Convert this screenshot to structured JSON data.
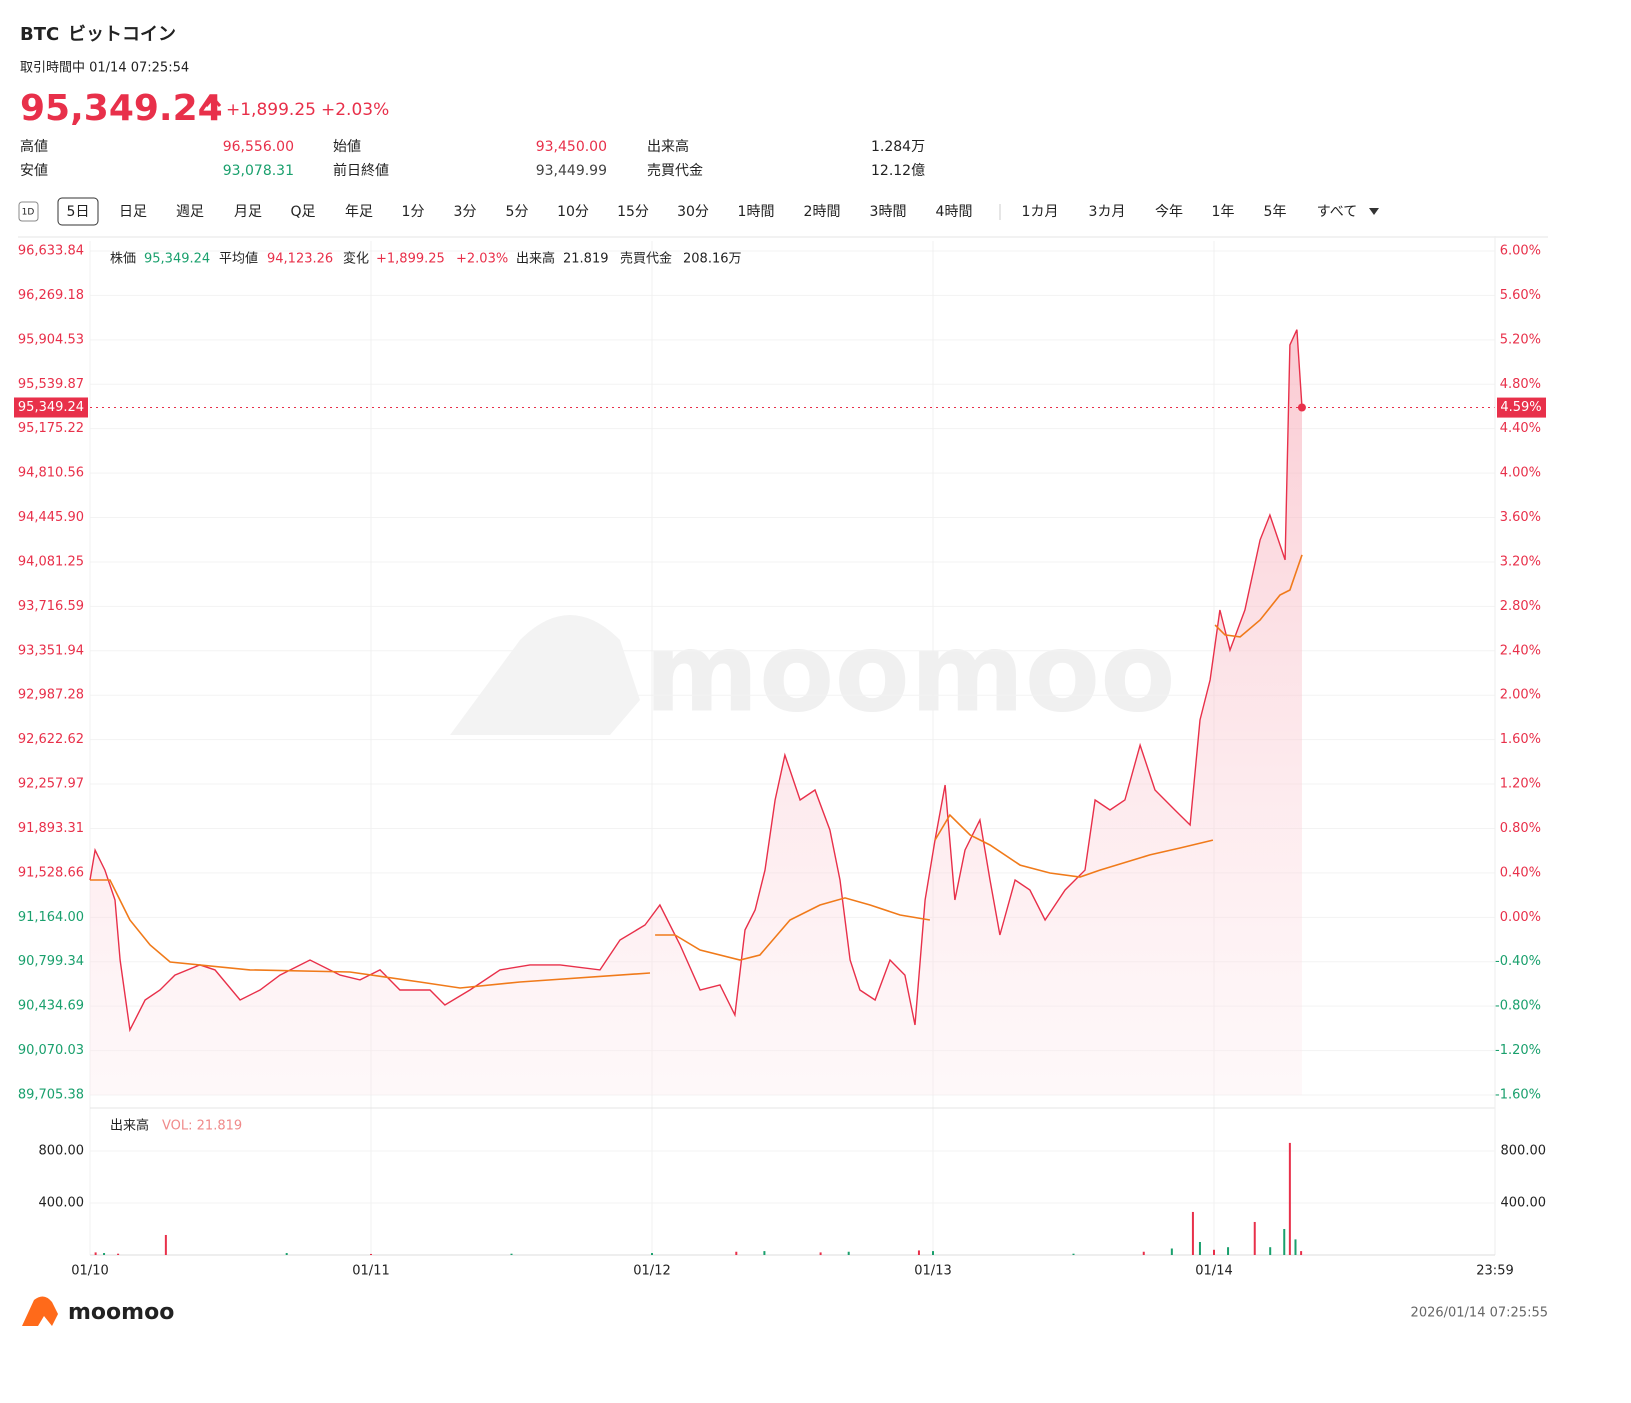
{
  "header": {
    "symbol": "BTC",
    "name": "ビットコイン",
    "status": "取引時間中 01/14 07:25:54",
    "price": "95,349.24",
    "change": "+1,899.25",
    "change_pct": "+2.03%",
    "stats": [
      [
        {
          "label": "高値",
          "value": "96,556.00"
        },
        {
          "label": "始値",
          "value": "93,450.00"
        },
        {
          "label": "出来高",
          "value": "1.284万"
        }
      ],
      [
        {
          "label": "安値",
          "value": "93,078.31"
        },
        {
          "label": "前日終値",
          "value": "93,449.99"
        },
        {
          "label": "売買代金",
          "value": "12.12億"
        }
      ]
    ],
    "tabs": [
      "1D",
      "5日",
      "日足",
      "週足",
      "月足",
      "Q足",
      "年足",
      "1分",
      "3分",
      "5分",
      "10分",
      "15分",
      "30分",
      "1時間",
      "2時間",
      "3時間",
      "4時間",
      "1カ月",
      "3カ月",
      "今年",
      "1年",
      "5年",
      "すべて"
    ],
    "selected_tab": "5日"
  },
  "info": [
    {
      "label": "株価",
      "value": "95,349.24"
    },
    {
      "label": "平均値",
      "value": "94,123.26"
    },
    {
      "label": "変化",
      "value": "+1,899.25"
    },
    {
      "label": "",
      "value": "+2.03%"
    },
    {
      "label": "出来高",
      "value": "21.819"
    },
    {
      "label": "売買代金",
      "value": "208.16万"
    }
  ],
  "watermark": "moomoo",
  "footer": {
    "brand": "moomoo",
    "timestamp": "2026/01/14 07:25:55"
  },
  "chart_data": [
    {
      "type": "line",
      "grid": true,
      "xlim": [
        0,
        5
      ],
      "xticks": [
        {
          "value": 0,
          "label": "01/10"
        },
        {
          "value": 1,
          "label": "01/11"
        },
        {
          "value": 2,
          "label": "01/12"
        },
        {
          "value": 3,
          "label": "01/13"
        },
        {
          "value": 4,
          "label": "01/14"
        },
        {
          "value": 5,
          "label": "23:59"
        }
      ],
      "ylim": [
        89705.38,
        96633.84
      ],
      "yticks": [
        {
          "value": 89705.38,
          "label": "89,705.38"
        },
        {
          "value": 90070.03,
          "label": "90,070.03"
        },
        {
          "value": 90434.69,
          "label": "90,434.69"
        },
        {
          "value": 90799.34,
          "label": "90,799.34"
        },
        {
          "value": 91164.0,
          "label": "91,164.00"
        },
        {
          "value": 91528.66,
          "label": "91,528.66"
        },
        {
          "value": 91893.31,
          "label": "91,893.31"
        },
        {
          "value": 92257.97,
          "label": "92,257.97"
        },
        {
          "value": 92622.62,
          "label": "92,622.62"
        },
        {
          "value": 92987.28,
          "label": "92,987.28"
        },
        {
          "value": 93351.94,
          "label": "93,351.94"
        },
        {
          "value": 93716.59,
          "label": "93,716.59"
        },
        {
          "value": 94081.25,
          "label": "94,081.25"
        },
        {
          "value": 94445.9,
          "label": "94,445.90"
        },
        {
          "value": 94810.56,
          "label": "94,810.56"
        },
        {
          "value": 95175.22,
          "label": "95,175.22"
        },
        {
          "value": 95539.87,
          "label": "95,539.87"
        },
        {
          "value": 95904.53,
          "label": "95,904.53"
        },
        {
          "value": 96269.18,
          "label": "96,269.18"
        },
        {
          "value": 96633.84,
          "label": "96,633.84"
        }
      ],
      "y2lim": [
        -1.6,
        6.0
      ],
      "y2ticks": [
        {
          "value": -1.6,
          "label": "-1.60%"
        },
        {
          "value": -1.2,
          "label": "-1.20%"
        },
        {
          "value": -0.8,
          "label": "-0.80%"
        },
        {
          "value": -0.4,
          "label": "-0.40%"
        },
        {
          "value": 0,
          "label": "0.00%"
        },
        {
          "value": 0.4,
          "label": "0.40%"
        },
        {
          "value": 0.8,
          "label": "0.80%"
        },
        {
          "value": 1.2,
          "label": "1.20%"
        },
        {
          "value": 1.6,
          "label": "1.60%"
        },
        {
          "value": 2.0,
          "label": "2.00%"
        },
        {
          "value": 2.4,
          "label": "2.40%"
        },
        {
          "value": 2.8,
          "label": "2.80%"
        },
        {
          "value": 3.2,
          "label": "3.20%"
        },
        {
          "value": 3.6,
          "label": "3.60%"
        },
        {
          "value": 4.0,
          "label": "4.00%"
        },
        {
          "value": 4.4,
          "label": "4.40%"
        },
        {
          "value": 4.8,
          "label": "4.80%"
        },
        {
          "value": 5.2,
          "label": "5.20%"
        },
        {
          "value": 5.6,
          "label": "5.60%"
        },
        {
          "value": 6.0,
          "label": "6.00%"
        }
      ],
      "last_price": {
        "value": 95349.24,
        "label": "95,349.24"
      },
      "last_pct": {
        "value": 4.59,
        "label": "4.59%"
      },
      "series": [
        {
          "name": "株価",
          "color": "#e8304a",
          "x": [
            0,
            0.018,
            0.053,
            0.089,
            0.107,
            0.142,
            0.196,
            0.249,
            0.302,
            0.391,
            0.445,
            0.534,
            0.605,
            0.676,
            0.783,
            0.89,
            0.961,
            1.032,
            1.103,
            1.21,
            1.263,
            1.352,
            1.459,
            1.566,
            1.673,
            1.815,
            1.886,
            1.975,
            2.028,
            2.1,
            2.171,
            2.242,
            2.295,
            2.331,
            2.367,
            2.402,
            2.438,
            2.473,
            2.527,
            2.58,
            2.633,
            2.669,
            2.705,
            2.74,
            2.794,
            2.847,
            2.9,
            2.936,
            2.972,
            3.007,
            3.043,
            3.078,
            3.114,
            3.167,
            3.203,
            3.238,
            3.292,
            3.345,
            3.399,
            3.47,
            3.541,
            3.577,
            3.63,
            3.683,
            3.737,
            3.79,
            3.861,
            3.915,
            3.95,
            3.986,
            4.021,
            4.057,
            4.11,
            4.164,
            4.199,
            4.253,
            4.27,
            4.295,
            4.313
          ],
          "values": [
            91470,
            91716,
            91552,
            91306,
            90814,
            90239,
            90485,
            90567,
            90690,
            90773,
            90732,
            90485,
            90567,
            90690,
            90814,
            90690,
            90650,
            90732,
            90567,
            90567,
            90444,
            90567,
            90732,
            90773,
            90773,
            90732,
            90978,
            91101,
            91265,
            90937,
            90567,
            90608,
            90362,
            91060,
            91224,
            91552,
            92127,
            92496,
            92127,
            92209,
            91881,
            91470,
            90814,
            90567,
            90485,
            90814,
            90690,
            90280,
            91306,
            91798,
            92250,
            91306,
            91716,
            91963,
            91470,
            91019,
            91470,
            91388,
            91142,
            91388,
            91552,
            92127,
            92045,
            92127,
            92578,
            92209,
            92045,
            91922,
            92784,
            93112,
            93687,
            93358,
            93687,
            94262,
            94467,
            94098,
            95863,
            95988,
            95349
          ]
        },
        {
          "name": "平均値",
          "color": "#f07a1a",
          "x": [
            0,
            0.071,
            0.142,
            0.214,
            0.285,
            0.569,
            0.925,
            1.174,
            1.317,
            1.53,
            1.993,
            null,
            2.011,
            2.082,
            2.171,
            2.313,
            2.384,
            2.491,
            2.598,
            2.687,
            2.776,
            2.883,
            2.989,
            null,
            3.007,
            3.06,
            3.132,
            3.203,
            3.31,
            3.416,
            3.523,
            3.594,
            3.772,
            3.879,
            3.996,
            null,
            4.004,
            4.039,
            4.093,
            4.164,
            4.235,
            4.27,
            4.313
          ],
          "values": [
            91470,
            91470,
            91142,
            90937,
            90797,
            90732,
            90715,
            90633,
            90584,
            90633,
            90707,
            null,
            91019,
            91019,
            90896,
            90814,
            90855,
            91142,
            91265,
            91323,
            91265,
            91183,
            91142,
            null,
            91798,
            92004,
            91840,
            91758,
            91593,
            91528,
            91495,
            91552,
            91676,
            91733,
            91798,
            null,
            93564,
            93482,
            93466,
            93605,
            93810,
            93851,
            94139
          ]
        }
      ]
    },
    {
      "type": "bar",
      "title": "出来高",
      "subtitle": "VOL: 21.819",
      "ylim": [
        0,
        1115
      ],
      "yticks": [
        {
          "value": 400,
          "label": "400.00"
        },
        {
          "value": 800,
          "label": "800.00"
        }
      ],
      "xlim": [
        0,
        5
      ],
      "x": [
        0.02,
        0.05,
        0.1,
        0.27,
        0.7,
        1.0,
        1.5,
        2.0,
        2.3,
        2.4,
        2.6,
        2.7,
        2.95,
        3.0,
        3.5,
        3.75,
        3.85,
        3.925,
        3.95,
        4.0,
        4.05,
        4.145,
        4.2,
        4.25,
        4.27,
        4.29,
        4.31
      ],
      "values": [
        20,
        15,
        10,
        154,
        15,
        8,
        10,
        15,
        25,
        30,
        20,
        25,
        35,
        30,
        10,
        25,
        50,
        331,
        100,
        40,
        60,
        254,
        60,
        200,
        862,
        120,
        30
      ],
      "colors": [
        "#e8304a",
        "#1aa06d",
        "#e8304a",
        "#e8304a",
        "#1aa06d",
        "#e8304a",
        "#1aa06d",
        "#1aa06d",
        "#e8304a",
        "#1aa06d",
        "#e8304a",
        "#1aa06d",
        "#e8304a",
        "#1aa06d",
        "#1aa06d",
        "#e8304a",
        "#1aa06d",
        "#e8304a",
        "#1aa06d",
        "#e8304a",
        "#1aa06d",
        "#e8304a",
        "#1aa06d",
        "#1aa06d",
        "#e8304a",
        "#1aa06d",
        "#e8304a"
      ]
    }
  ]
}
